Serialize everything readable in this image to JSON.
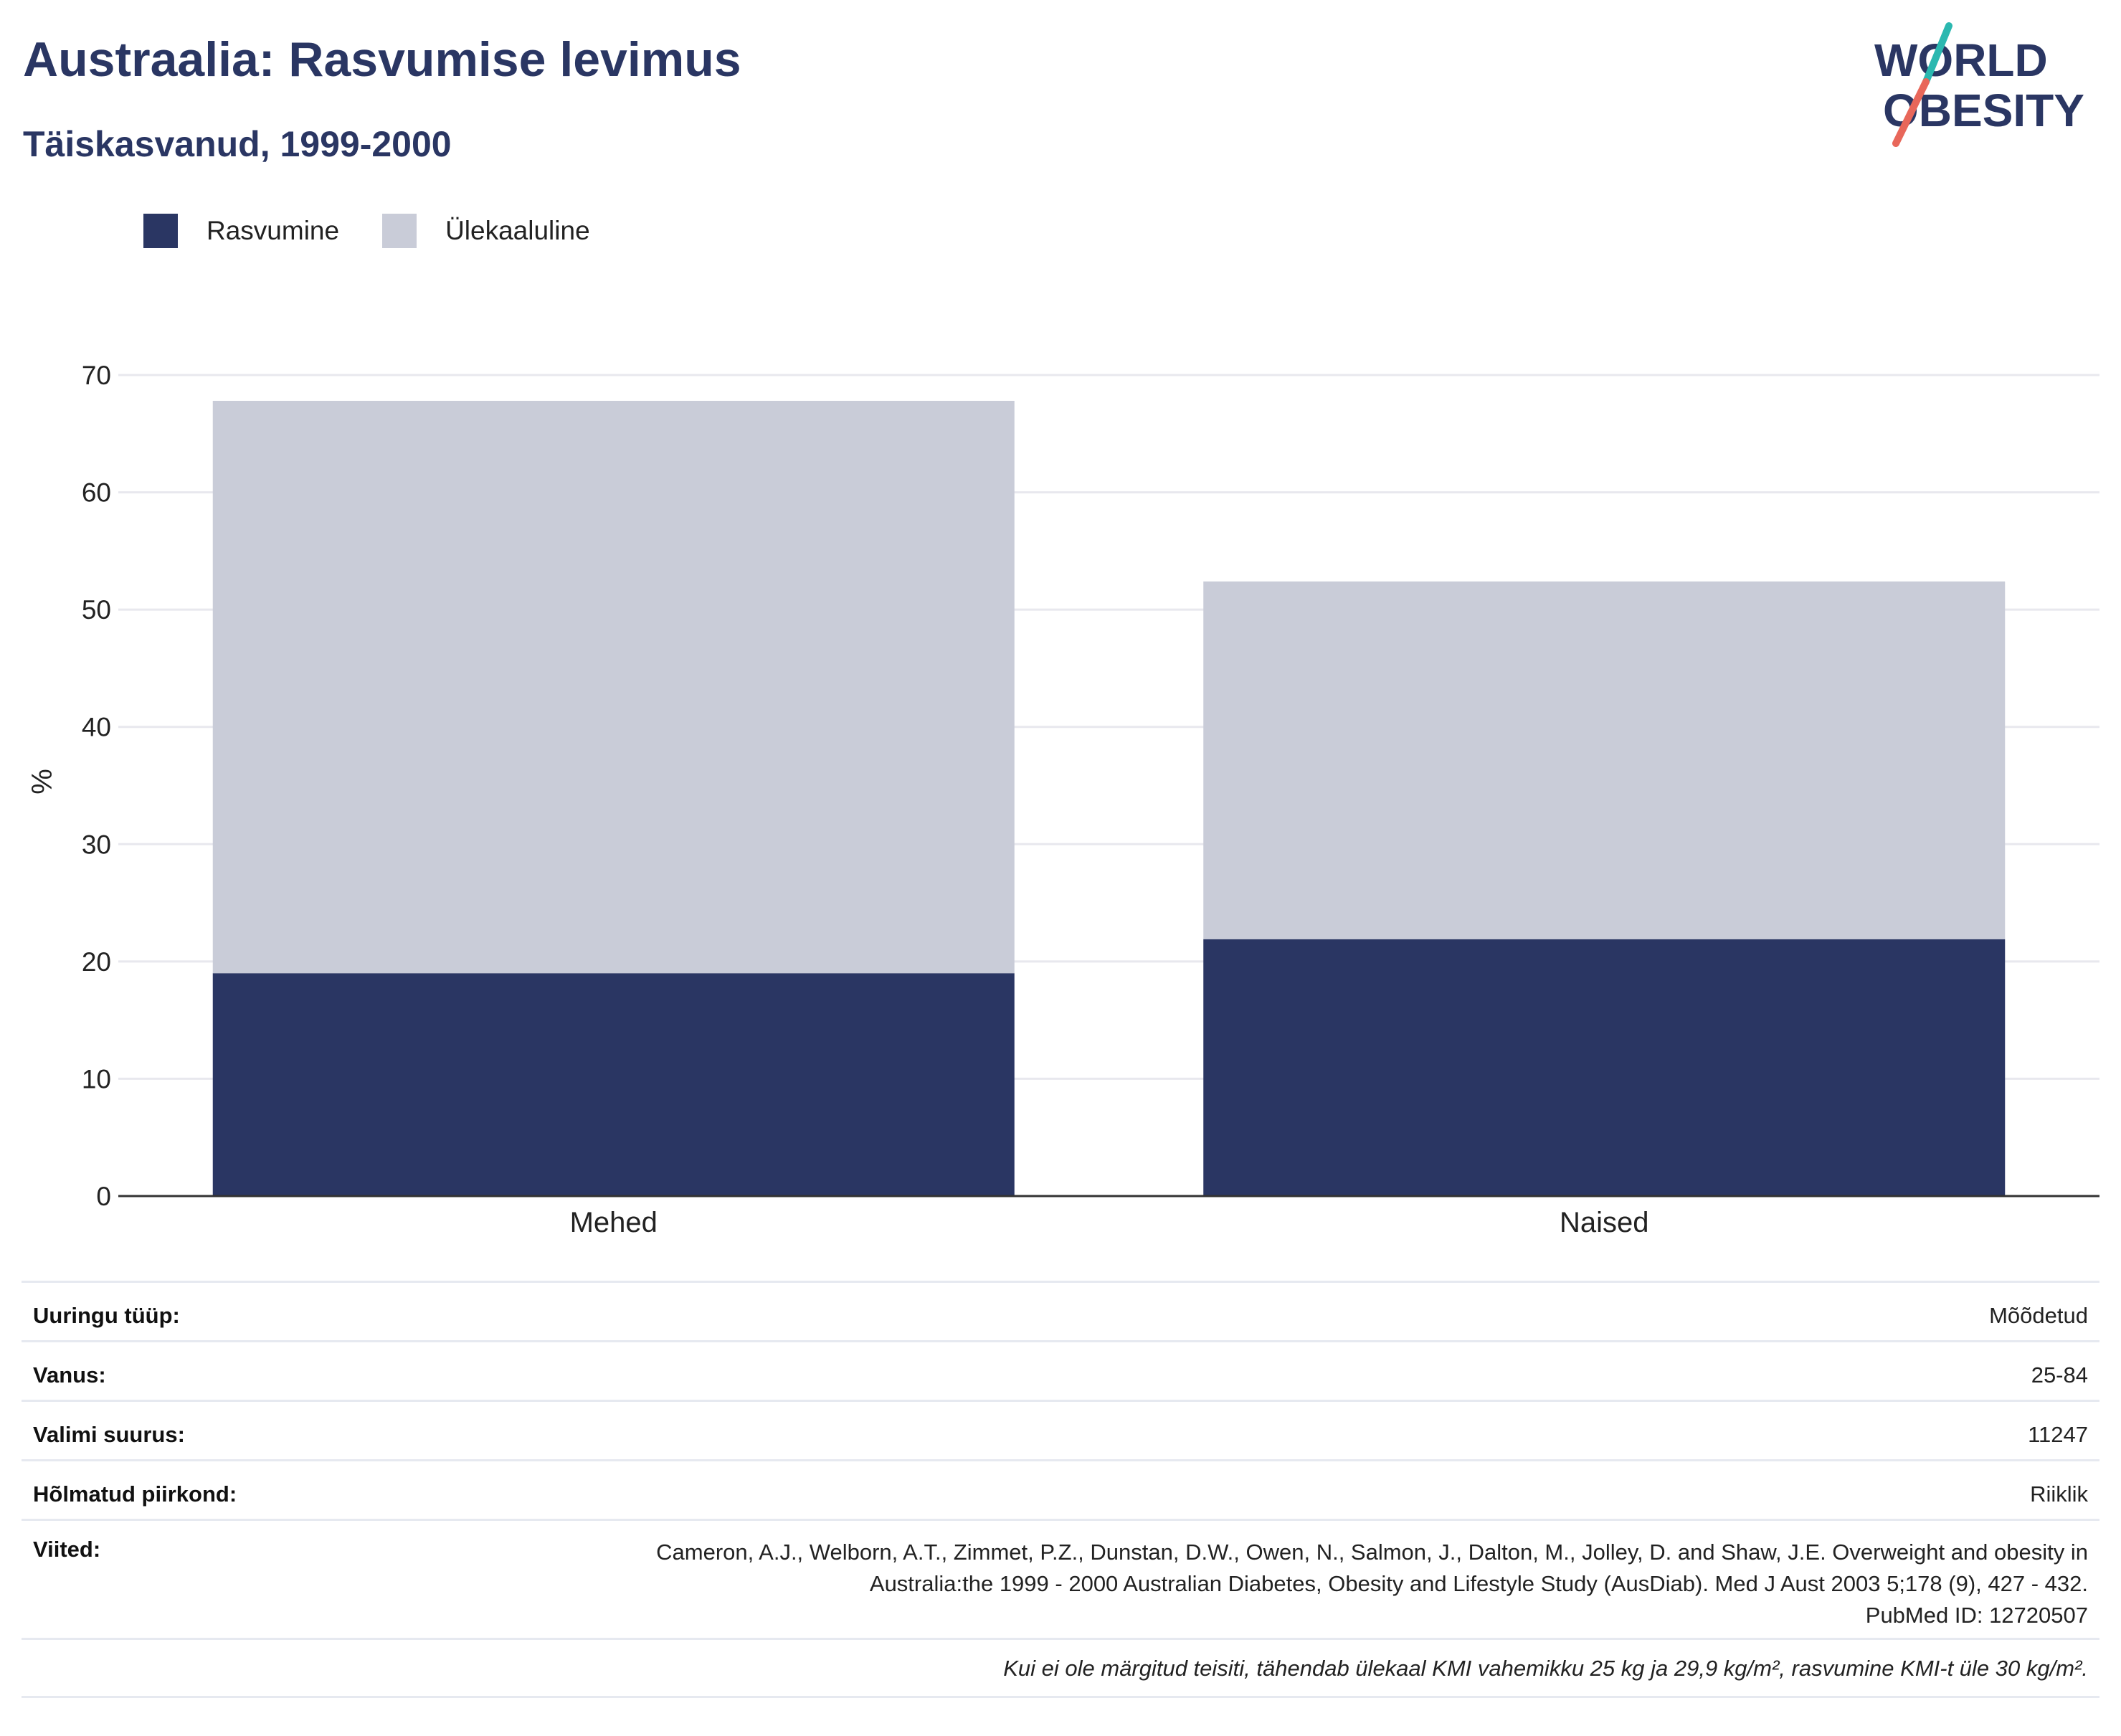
{
  "header": {
    "title": "Austraalia: Rasvumise levimus",
    "subtitle": "Täiskasvanud, 1999-2000"
  },
  "logo": {
    "line1": "WORLD",
    "line2": "OBESITY",
    "colors": {
      "text": "#2a3663",
      "stroke_top": "#2bb8b0",
      "stroke_bottom": "#e8675a"
    }
  },
  "colors": {
    "obesity": "#2a3663",
    "overweight": "#c9ccd8",
    "grid": "#e8e8ee",
    "axis": "#333333",
    "title": "#2a3663"
  },
  "chart_data": {
    "type": "bar",
    "stacked": true,
    "categories": [
      "Mehed",
      "Naised"
    ],
    "series": [
      {
        "name": "Rasvumine",
        "values": [
          19.0,
          21.9
        ]
      },
      {
        "name": "Ülekaaluline",
        "values": [
          48.8,
          30.5
        ]
      }
    ],
    "ylabel": "%",
    "ylim": [
      0,
      70
    ],
    "yticks": [
      0,
      10,
      20,
      30,
      40,
      50,
      60,
      70
    ],
    "grid": true,
    "legend_position": "top-left"
  },
  "info": {
    "rows": [
      {
        "key": "Uuringu tüüp:",
        "value": "Mõõdetud"
      },
      {
        "key": "Vanus:",
        "value": "25-84"
      },
      {
        "key": "Valimi suurus:",
        "value": "11247"
      },
      {
        "key": "Hõlmatud piirkond:",
        "value": "Riiklik"
      }
    ],
    "references": {
      "key": "Viited:",
      "value": "Cameron, A.J., Welborn, A.T., Zimmet, P.Z., Dunstan, D.W., Owen, N., Salmon, J., Dalton, M., Jolley, D. and Shaw, J.E. Overweight and obesity in Australia:the 1999 - 2000 Australian Diabetes, Obesity and Lifestyle Study (AusDiab). Med J Aust 2003 5;178 (9), 427 - 432.",
      "pubmed": "PubMed ID: 12720507"
    },
    "note": "Kui ei ole märgitud teisiti, tähendab ülekaal KMI vahemikku 25 kg ja 29,9 kg/m², rasvumine KMI-t üle 30 kg/m²."
  }
}
